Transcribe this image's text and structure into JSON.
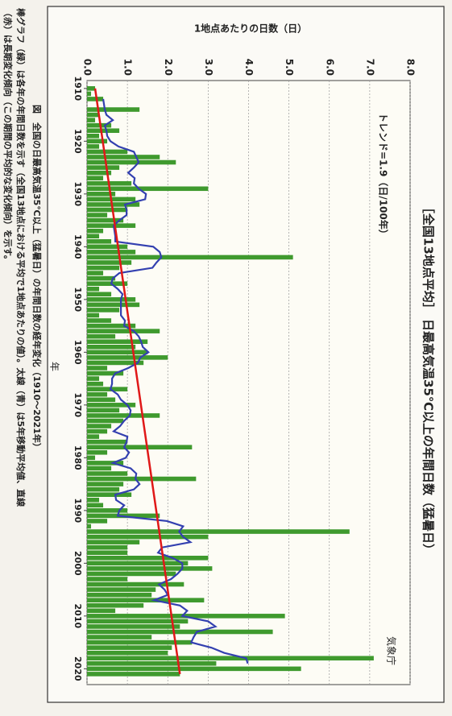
{
  "chart_data": {
    "type": "bar",
    "title": "［全国13地点平均］ 日最高気温35℃以上の年間日数（猛暑日）",
    "y_label": "1地点あたりの日数（日）",
    "x_label": "年",
    "annotation": "トレンド=1.9（日/100年）",
    "source": "気象庁",
    "caption": [
      "図　全国の日最高気温35℃以上（猛暑日）の年間日数の経年変化（1910～2021年）",
      "棒グラフ（緑）は各年の年間日数を示す（全国13地点における平均で1地点あたりの値）。太線（青）は5年移動平均値、直線",
      "（赤）は長期変化傾向（この期間の平均的な変化傾向）を示す。"
    ],
    "x": [
      1910,
      1911,
      1912,
      1913,
      1914,
      1915,
      1916,
      1917,
      1918,
      1919,
      1920,
      1921,
      1922,
      1923,
      1924,
      1925,
      1926,
      1927,
      1928,
      1929,
      1930,
      1931,
      1932,
      1933,
      1934,
      1935,
      1936,
      1937,
      1938,
      1939,
      1940,
      1941,
      1942,
      1943,
      1944,
      1945,
      1946,
      1947,
      1948,
      1949,
      1950,
      1951,
      1952,
      1953,
      1954,
      1955,
      1956,
      1957,
      1958,
      1959,
      1960,
      1961,
      1962,
      1963,
      1964,
      1965,
      1966,
      1967,
      1968,
      1969,
      1970,
      1971,
      1972,
      1973,
      1974,
      1975,
      1976,
      1977,
      1978,
      1979,
      1980,
      1981,
      1982,
      1983,
      1984,
      1985,
      1986,
      1987,
      1988,
      1989,
      1990,
      1991,
      1992,
      1993,
      1994,
      1995,
      1996,
      1997,
      1998,
      1999,
      2000,
      2001,
      2002,
      2003,
      2004,
      2005,
      2006,
      2007,
      2008,
      2009,
      2010,
      2011,
      2012,
      2013,
      2014,
      2015,
      2016,
      2017,
      2018,
      2019,
      2020,
      2021
    ],
    "values": [
      0.2,
      0.1,
      0.4,
      0.0,
      1.3,
      0.3,
      0.2,
      0.6,
      0.8,
      0.3,
      0.5,
      0.3,
      1.0,
      1.8,
      2.2,
      0.8,
      0.6,
      0.4,
      1.1,
      3.0,
      0.7,
      1.2,
      1.3,
      1.0,
      0.5,
      0.9,
      1.2,
      0.4,
      0.3,
      0.6,
      1.0,
      1.2,
      5.1,
      1.1,
      0.8,
      0.4,
      0.7,
      1.0,
      0.3,
      0.6,
      1.2,
      1.3,
      0.8,
      0.3,
      0.6,
      1.2,
      1.8,
      0.7,
      1.5,
      1.2,
      1.5,
      2.0,
      1.4,
      0.5,
      0.9,
      0.3,
      0.4,
      1.0,
      0.5,
      0.7,
      1.2,
      0.8,
      1.8,
      0.9,
      0.6,
      0.5,
      0.3,
      1.0,
      2.6,
      0.5,
      0.2,
      0.9,
      0.6,
      1.0,
      2.7,
      0.9,
      0.8,
      1.1,
      0.3,
      0.4,
      1.0,
      1.8,
      0.5,
      0.1,
      6.5,
      3.0,
      1.3,
      1.0,
      1.0,
      3.0,
      2.5,
      3.1,
      2.2,
      1.0,
      2.4,
      1.7,
      1.6,
      2.9,
      1.4,
      0.7,
      4.9,
      2.5,
      2.3,
      4.6,
      1.6,
      2.6,
      2.1,
      2.0,
      7.1,
      3.2,
      5.3,
      2.3
    ],
    "color": "#3f9a2e",
    "moving_average": {
      "color": "#3340b0",
      "values": [
        null,
        null,
        0.4,
        0.42,
        0.44,
        0.48,
        0.64,
        0.44,
        0.48,
        0.5,
        0.58,
        0.78,
        1.16,
        1.22,
        1.28,
        1.16,
        1.02,
        1.18,
        1.16,
        1.28,
        1.46,
        1.44,
        0.94,
        0.98,
        0.98,
        0.8,
        0.66,
        0.68,
        0.7,
        0.7,
        1.64,
        1.8,
        1.84,
        1.72,
        1.62,
        0.8,
        0.64,
        0.6,
        0.76,
        0.88,
        0.84,
        0.84,
        0.84,
        0.84,
        0.94,
        0.92,
        1.16,
        1.28,
        1.34,
        1.38,
        1.52,
        1.32,
        1.26,
        1.02,
        0.7,
        0.62,
        0.62,
        0.58,
        0.76,
        0.84,
        1.0,
        1.08,
        1.06,
        0.92,
        0.82,
        0.66,
        1.0,
        0.98,
        0.92,
        1.04,
        0.96,
        0.64,
        1.08,
        1.22,
        1.2,
        1.3,
        1.16,
        0.7,
        0.72,
        0.92,
        0.8,
        0.76,
        1.98,
        2.38,
        2.28,
        2.38,
        2.56,
        1.86,
        1.76,
        2.12,
        2.36,
        2.36,
        2.24,
        2.08,
        1.78,
        1.92,
        2.0,
        1.66,
        2.3,
        2.48,
        2.36,
        3.0,
        3.18,
        2.72,
        2.64,
        2.58,
        3.08,
        3.4,
        3.94,
        3.98,
        null,
        null
      ]
    },
    "trend": {
      "color": "#e01818",
      "x": [
        1910,
        2021
      ],
      "values": [
        0.2,
        2.3
      ]
    },
    "xlim": [
      1908.5,
      2023
    ],
    "ylim": [
      0,
      8
    ],
    "xticks": [
      1910,
      1920,
      1930,
      1940,
      1950,
      1960,
      1970,
      1980,
      1990,
      2000,
      2010,
      2020
    ],
    "yticks": [
      {
        "value": 0,
        "label": "0.0"
      },
      {
        "value": 1,
        "label": "1.0"
      },
      {
        "value": 2,
        "label": "2.0"
      },
      {
        "value": 3,
        "label": "3.0"
      },
      {
        "value": 4,
        "label": "4.0"
      },
      {
        "value": 5,
        "label": "5.0"
      },
      {
        "value": 6,
        "label": "6.0"
      },
      {
        "value": 7,
        "label": "7.0"
      },
      {
        "value": 8,
        "label": "8.0"
      }
    ],
    "grid": true
  }
}
